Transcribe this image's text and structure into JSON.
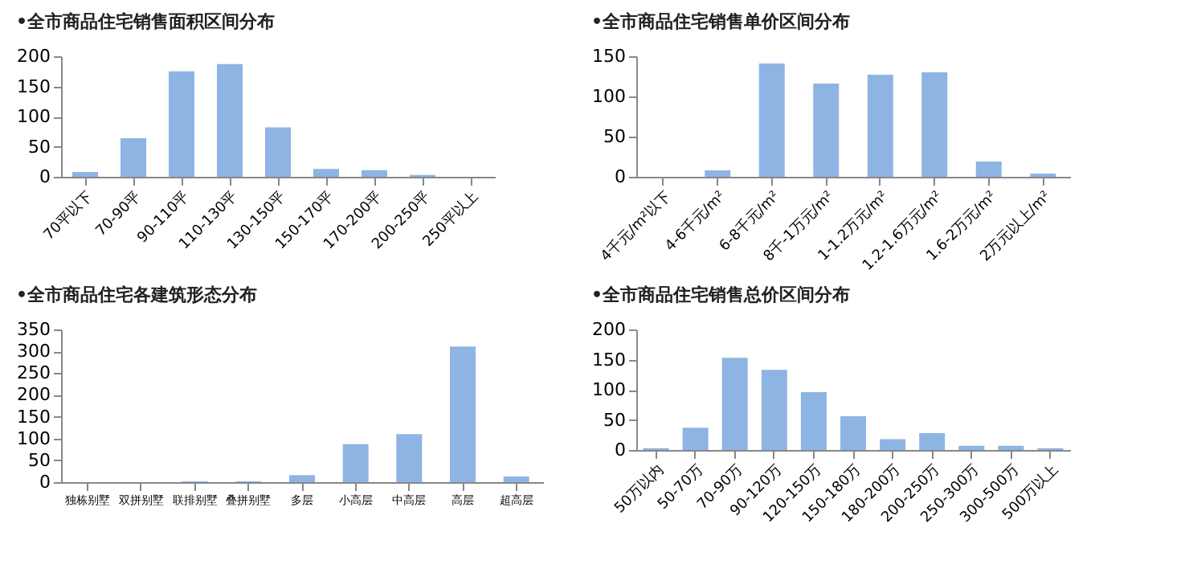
{
  "chart_data": [
    {
      "type": "bar",
      "title": "•全市商品住宅销售面积区间分布",
      "categories": [
        "70平以下",
        "70-90平",
        "90-110平",
        "110-130平",
        "130-150平",
        "150-170平",
        "170-200平",
        "200-250平",
        "250平以上"
      ],
      "values": [
        8,
        64,
        175,
        187,
        82,
        13,
        11,
        3,
        0
      ],
      "color": "#8eb4e3",
      "ylim": [
        0,
        200
      ],
      "yticks": [
        0,
        50,
        100,
        150,
        200
      ],
      "grid": false
    },
    {
      "type": "bar",
      "title": "•全市商品住宅销售单价区间分布",
      "categories": [
        "4千元/m²以下",
        "4-6千元/m²",
        "6-8千元/m²",
        "8千-1万元/m²",
        "1-1.2万元/m²",
        "1.2-1.6万元/m²",
        "1.6-2万元/m²",
        "2万元以上/m²"
      ],
      "values": [
        0,
        8,
        141,
        116,
        127,
        130,
        19,
        4
      ],
      "color": "#8eb4e3",
      "ylim": [
        0,
        150
      ],
      "yticks": [
        0,
        50,
        100,
        150
      ],
      "grid": false
    },
    {
      "type": "bar",
      "title": "•全市商品住宅各建筑形态分布",
      "categories": [
        "独栋别墅",
        "双拼别墅",
        "联排别墅",
        "叠拼别墅",
        "多层",
        "小高层",
        "中高层",
        "高层",
        "超高层"
      ],
      "values": [
        0,
        0,
        2,
        2,
        16,
        87,
        110,
        311,
        13
      ],
      "color": "#8eb4e3",
      "ylim": [
        0,
        350
      ],
      "yticks": [
        0,
        50,
        100,
        150,
        200,
        250,
        300,
        350
      ],
      "grid": false
    },
    {
      "type": "bar",
      "title": "•全市商品住宅销售总价区间分布",
      "categories": [
        "50万以内",
        "50-70万",
        "70-90万",
        "90-120万",
        "120-150万",
        "150-180万",
        "180-200万",
        "200-250万",
        "250-300万",
        "300-500万",
        "500万以上"
      ],
      "values": [
        3,
        37,
        153,
        133,
        96,
        56,
        18,
        28,
        7,
        7,
        3
      ],
      "color": "#8eb4e3",
      "ylim": [
        0,
        200
      ],
      "yticks": [
        0,
        50,
        100,
        150,
        200
      ],
      "grid": false
    }
  ]
}
